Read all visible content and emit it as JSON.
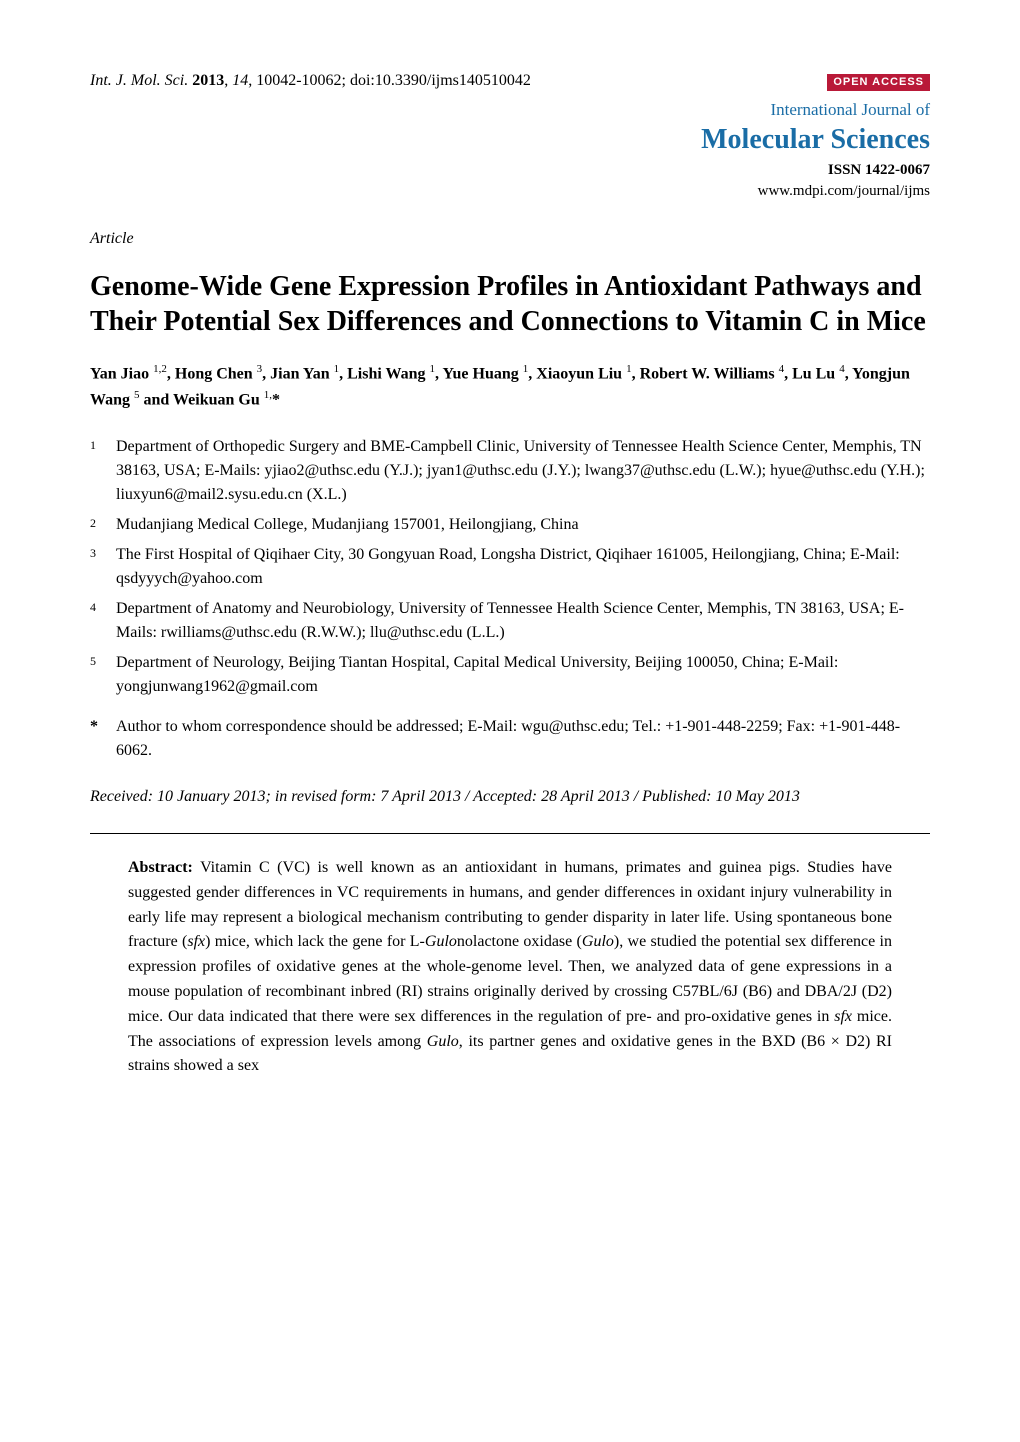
{
  "header": {
    "journal_abbrev": "Int. J. Mol. Sci.",
    "year": "2013",
    "volume": "14",
    "pages": "10042-10062",
    "doi": "doi:10.3390/ijms140510042",
    "open_access": "OPEN ACCESS",
    "journal_name_top": "International Journal of",
    "journal_name_main": "Molecular Sciences",
    "issn": "ISSN 1422-0067",
    "url": "www.mdpi.com/journal/ijms"
  },
  "article_type": "Article",
  "title": "Genome-Wide Gene Expression Profiles in Antioxidant Pathways and Their Potential Sex Differences and Connections to Vitamin C in Mice",
  "authors_html": "Yan Jiao <sup>1,2</sup>, Hong Chen <sup>3</sup>, Jian Yan <sup>1</sup>, Lishi Wang <sup>1</sup>, Yue Huang <sup>1</sup>, Xiaoyun Liu <sup>1</sup>, Robert W. Williams <sup>4</sup>, Lu Lu <sup>4</sup>, Yongjun Wang <sup>5</sup> and Weikuan Gu <sup>1,</sup>*",
  "affiliations": [
    {
      "num": "1",
      "text": "Department of Orthopedic Surgery and BME-Campbell Clinic, University of Tennessee Health Science Center, Memphis, TN 38163, USA; E-Mails: yjiao2@uthsc.edu (Y.J.); jyan1@uthsc.edu (J.Y.); lwang37@uthsc.edu (L.W.); hyue@uthsc.edu (Y.H.); liuxyun6@mail2.sysu.edu.cn (X.L.)"
    },
    {
      "num": "2",
      "text": "Mudanjiang Medical College, Mudanjiang 157001, Heilongjiang, China"
    },
    {
      "num": "3",
      "text": "The First Hospital of Qiqihaer City, 30 Gongyuan Road, Longsha District, Qiqihaer 161005, Heilongjiang, China; E-Mail: qsdyyych@yahoo.com"
    },
    {
      "num": "4",
      "text": "Department of Anatomy and Neurobiology, University of Tennessee Health Science Center, Memphis, TN 38163, USA; E-Mails: rwilliams@uthsc.edu (R.W.W.); llu@uthsc.edu (L.L.)"
    },
    {
      "num": "5",
      "text": "Department of Neurology, Beijing Tiantan Hospital, Capital Medical University, Beijing 100050, China; E-Mail: yongjunwang1962@gmail.com"
    }
  ],
  "corresponding": "Author to whom correspondence should be addressed; E-Mail: wgu@uthsc.edu; Tel.: +1-901-448-2259; Fax: +1-901-448-6062.",
  "dates": "Received: 10 January 2013; in revised form: 7 April 2013 / Accepted: 28 April 2013 / Published: 10 May 2013",
  "abstract": {
    "label": "Abstract:",
    "text_html": "Vitamin C (VC) is well known as an antioxidant in humans, primates and guinea pigs. Studies have suggested gender differences in VC requirements in humans, and gender differences in oxidant injury vulnerability in early life may represent a biological mechanism contributing to gender disparity in later life. Using spontaneous bone fracture (<span class=\"italic\">sfx</span>) mice, which lack the gene for L-<span class=\"italic\">Gulo</span>nolactone oxidase (<span class=\"italic\">Gulo</span>), we studied the potential sex difference in expression profiles of oxidative genes at the whole-genome level. Then, we analyzed data of gene expressions in a mouse population of recombinant inbred (RI) strains originally derived by crossing C57BL/6J (B6) and DBA/2J (D2) mice. Our data indicated that there were sex differences in the regulation of pre- and pro-oxidative genes in <span class=\"italic\">sfx</span> mice. The associations of expression levels among <span class=\"italic\">Gulo</span>, its partner genes and oxidative genes in the BXD (B6 × D2) RI strains showed a sex"
  },
  "colors": {
    "brand_blue": "#1a6da6",
    "open_access_bg": "#b91938",
    "text": "#000000",
    "background": "#ffffff"
  },
  "typography": {
    "body_fontsize_pt": 12,
    "title_fontsize_pt": 21,
    "journal_main_fontsize_pt": 21,
    "font_family": "Times New Roman"
  }
}
